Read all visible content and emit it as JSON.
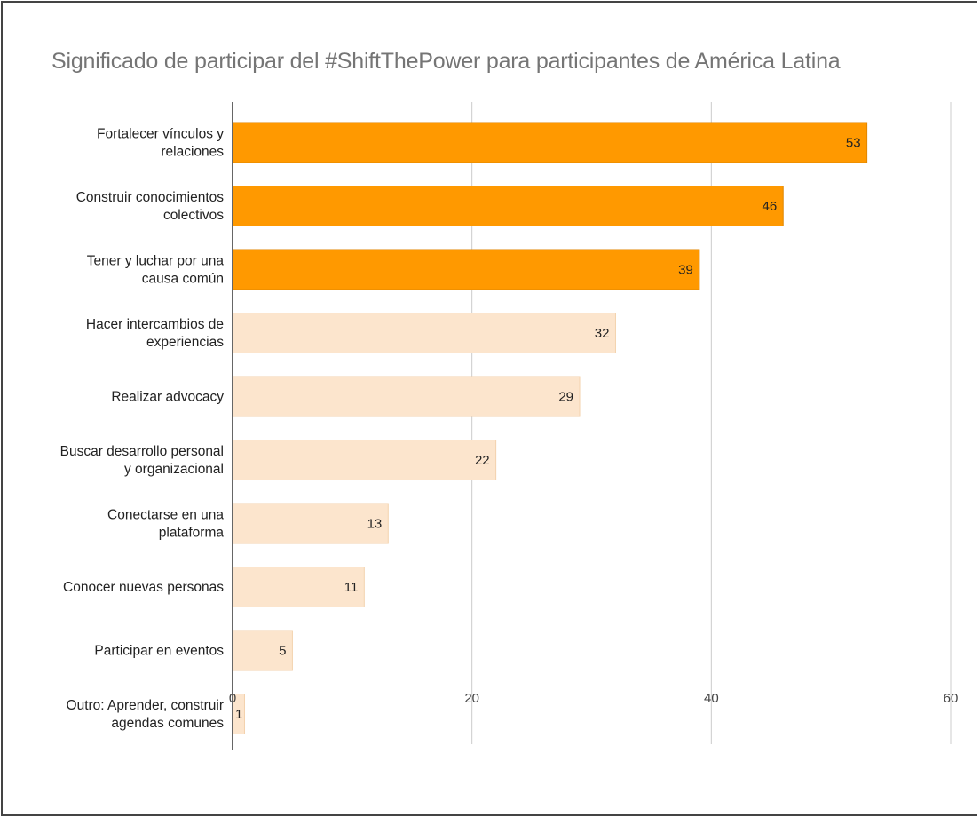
{
  "chart_data": {
    "type": "bar",
    "orientation": "horizontal",
    "title": "Significado de participar del #ShiftThePower para participantes de América Latina",
    "xlabel": "",
    "ylabel": "",
    "xlim": [
      0,
      60
    ],
    "x_ticks": [
      "0",
      "20",
      "40",
      "60"
    ],
    "grid": true,
    "legend": "none",
    "categories": [
      [
        "Fortalecer vínculos y",
        "relaciones"
      ],
      [
        "Construir conocimientos",
        "colectivos"
      ],
      [
        "Tener y luchar por una",
        "causa común"
      ],
      [
        "Hacer intercambios de",
        "experiencias"
      ],
      [
        "Realizar advocacy"
      ],
      [
        "Buscar desarrollo personal",
        "y organizacional"
      ],
      [
        "Conectarse en una",
        "plataforma"
      ],
      [
        "Conocer nuevas personas"
      ],
      [
        "Participar en eventos"
      ],
      [
        "Outro: Aprender, construir",
        "agendas comunes"
      ]
    ],
    "values": [
      53,
      46,
      39,
      32,
      29,
      22,
      13,
      11,
      5,
      1
    ],
    "colors": {
      "highlight": "#ff9900",
      "default": "#fce5cd",
      "highlight_border": "#e08600",
      "default_border": "#f3d2ad",
      "grid": "#cccccc",
      "axis": "#333333"
    },
    "highlighted_count": 3
  }
}
